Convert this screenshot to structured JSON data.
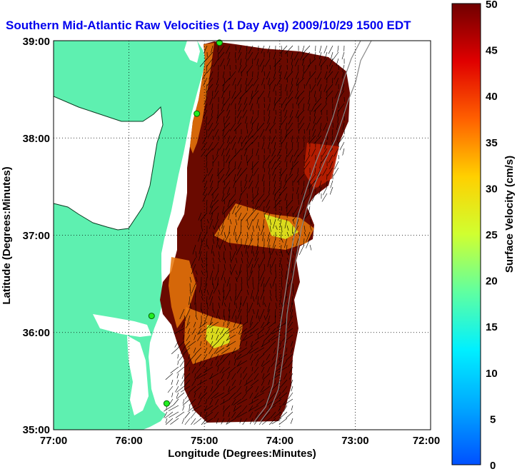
{
  "title": "Southern Mid-Atlantic Raw Velocities (1 Day Avg) 2009/10/29 1500 EDT",
  "x_axis": {
    "label": "Longitude (Degrees:Minutes)",
    "ticks": [
      "77:00",
      "76:00",
      "75:00",
      "74:00",
      "73:00",
      "72:00"
    ]
  },
  "y_axis": {
    "label": "Latitude (Degrees:Minutes)",
    "ticks": [
      "39:00",
      "38:00",
      "37:00",
      "36:00",
      "35:00"
    ]
  },
  "colorbar": {
    "label": "Surface Velocity (cm/s)",
    "ticks": [
      "50",
      "45",
      "40",
      "35",
      "30",
      "25",
      "20",
      "15",
      "10",
      "5",
      "0"
    ],
    "min": 0,
    "max": 50
  },
  "map": {
    "lon_range": [
      -77,
      -72
    ],
    "lat_range": [
      35,
      39
    ],
    "grid": true,
    "land_color": "#5ef0b0",
    "field_color_high": "#6a0a00",
    "field_color_mid": "#e8780a",
    "field_color_low": "#dcf020",
    "stations": [
      {
        "lon": -74.8,
        "lat": 38.98
      },
      {
        "lon": -75.1,
        "lat": 38.25
      },
      {
        "lon": -75.7,
        "lat": 36.17
      },
      {
        "lon": -75.5,
        "lat": 35.27
      }
    ]
  }
}
